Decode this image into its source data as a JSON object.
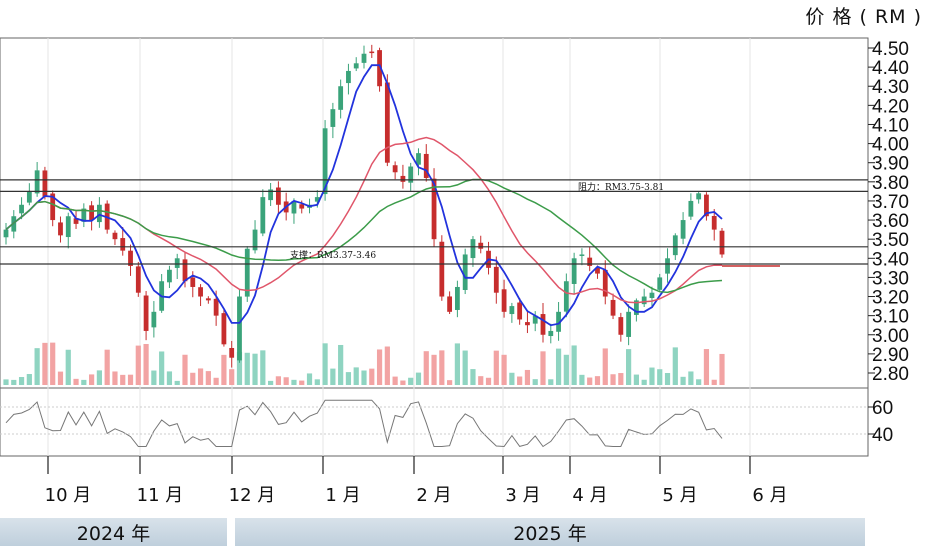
{
  "chart_data": {
    "type": "candlestick",
    "y_axis_title": "价 格 ( RM )",
    "price_ticks": [
      "4.50",
      "4.40",
      "4.30",
      "4.20",
      "4.10",
      "4.00",
      "3.90",
      "3.80",
      "3.70",
      "3.60",
      "3.50",
      "3.40",
      "3.30",
      "3.20",
      "3.10",
      "3.00",
      "2.90",
      "2.80"
    ],
    "ylim": [
      2.75,
      4.56
    ],
    "rsi_ticks": [
      "60",
      "40"
    ],
    "months": [
      "10 月",
      "11 月",
      "12 月",
      "1 月",
      "2 月",
      "3 月",
      "4 月",
      "5 月",
      "6 月"
    ],
    "years": [
      "2024 年",
      "2025 年"
    ],
    "resistance": {
      "label": "阻力：RM3.75-3.81",
      "low": 3.75,
      "high": 3.81
    },
    "support": {
      "label": "支撑：RM3.37-3.46",
      "low": 3.37,
      "high": 3.46
    },
    "close_series": [
      3.55,
      3.62,
      3.68,
      3.75,
      3.86,
      3.72,
      3.6,
      3.52,
      3.62,
      3.58,
      3.66,
      3.6,
      3.68,
      3.55,
      3.5,
      3.44,
      3.36,
      3.22,
      3.02,
      3.12,
      3.28,
      3.34,
      3.4,
      3.28,
      3.25,
      3.2,
      3.18,
      3.1,
      2.95,
      2.88,
      3.2,
      3.45,
      3.55,
      3.72,
      3.76,
      3.68,
      3.64,
      3.7,
      3.66,
      3.68,
      3.72,
      4.08,
      4.18,
      4.3,
      4.38,
      4.42,
      4.47,
      4.48,
      4.3,
      3.9,
      3.85,
      3.8,
      3.88,
      3.95,
      3.82,
      3.5,
      3.2,
      3.12,
      3.25,
      3.42,
      3.5,
      3.45,
      3.35,
      3.22,
      3.12,
      3.15,
      3.08,
      3.05,
      3.1,
      3.0,
      3.02,
      3.12,
      3.28,
      3.4,
      3.42,
      3.36,
      3.32,
      3.2,
      3.1,
      3.0,
      3.12,
      3.18,
      3.2,
      3.22,
      3.3,
      3.4,
      3.52,
      3.6,
      3.7,
      3.74,
      3.62,
      3.55,
      3.42
    ]
  }
}
